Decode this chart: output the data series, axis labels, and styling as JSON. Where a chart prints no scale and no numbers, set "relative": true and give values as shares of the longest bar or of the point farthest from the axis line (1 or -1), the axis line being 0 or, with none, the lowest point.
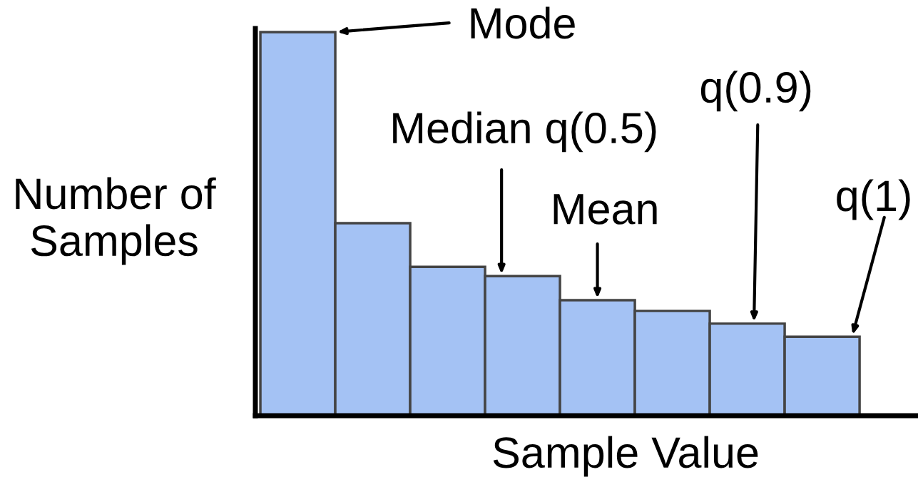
{
  "chart_data": {
    "type": "bar",
    "relative": true,
    "xlabel": "Sample Value",
    "ylabel": "Number of\nSamples",
    "categories": [
      null,
      null,
      null,
      null,
      null,
      null,
      null,
      null
    ],
    "values": [
      1,
      0.502,
      0.388,
      0.364,
      0.301,
      0.273,
      0.24,
      0.206
    ],
    "color": "#a4c2f4",
    "annotations": [
      "Mode",
      "Median q(0.5)",
      "Mean",
      "q(0.9)",
      "q(1)"
    ],
    "grid": false
  }
}
